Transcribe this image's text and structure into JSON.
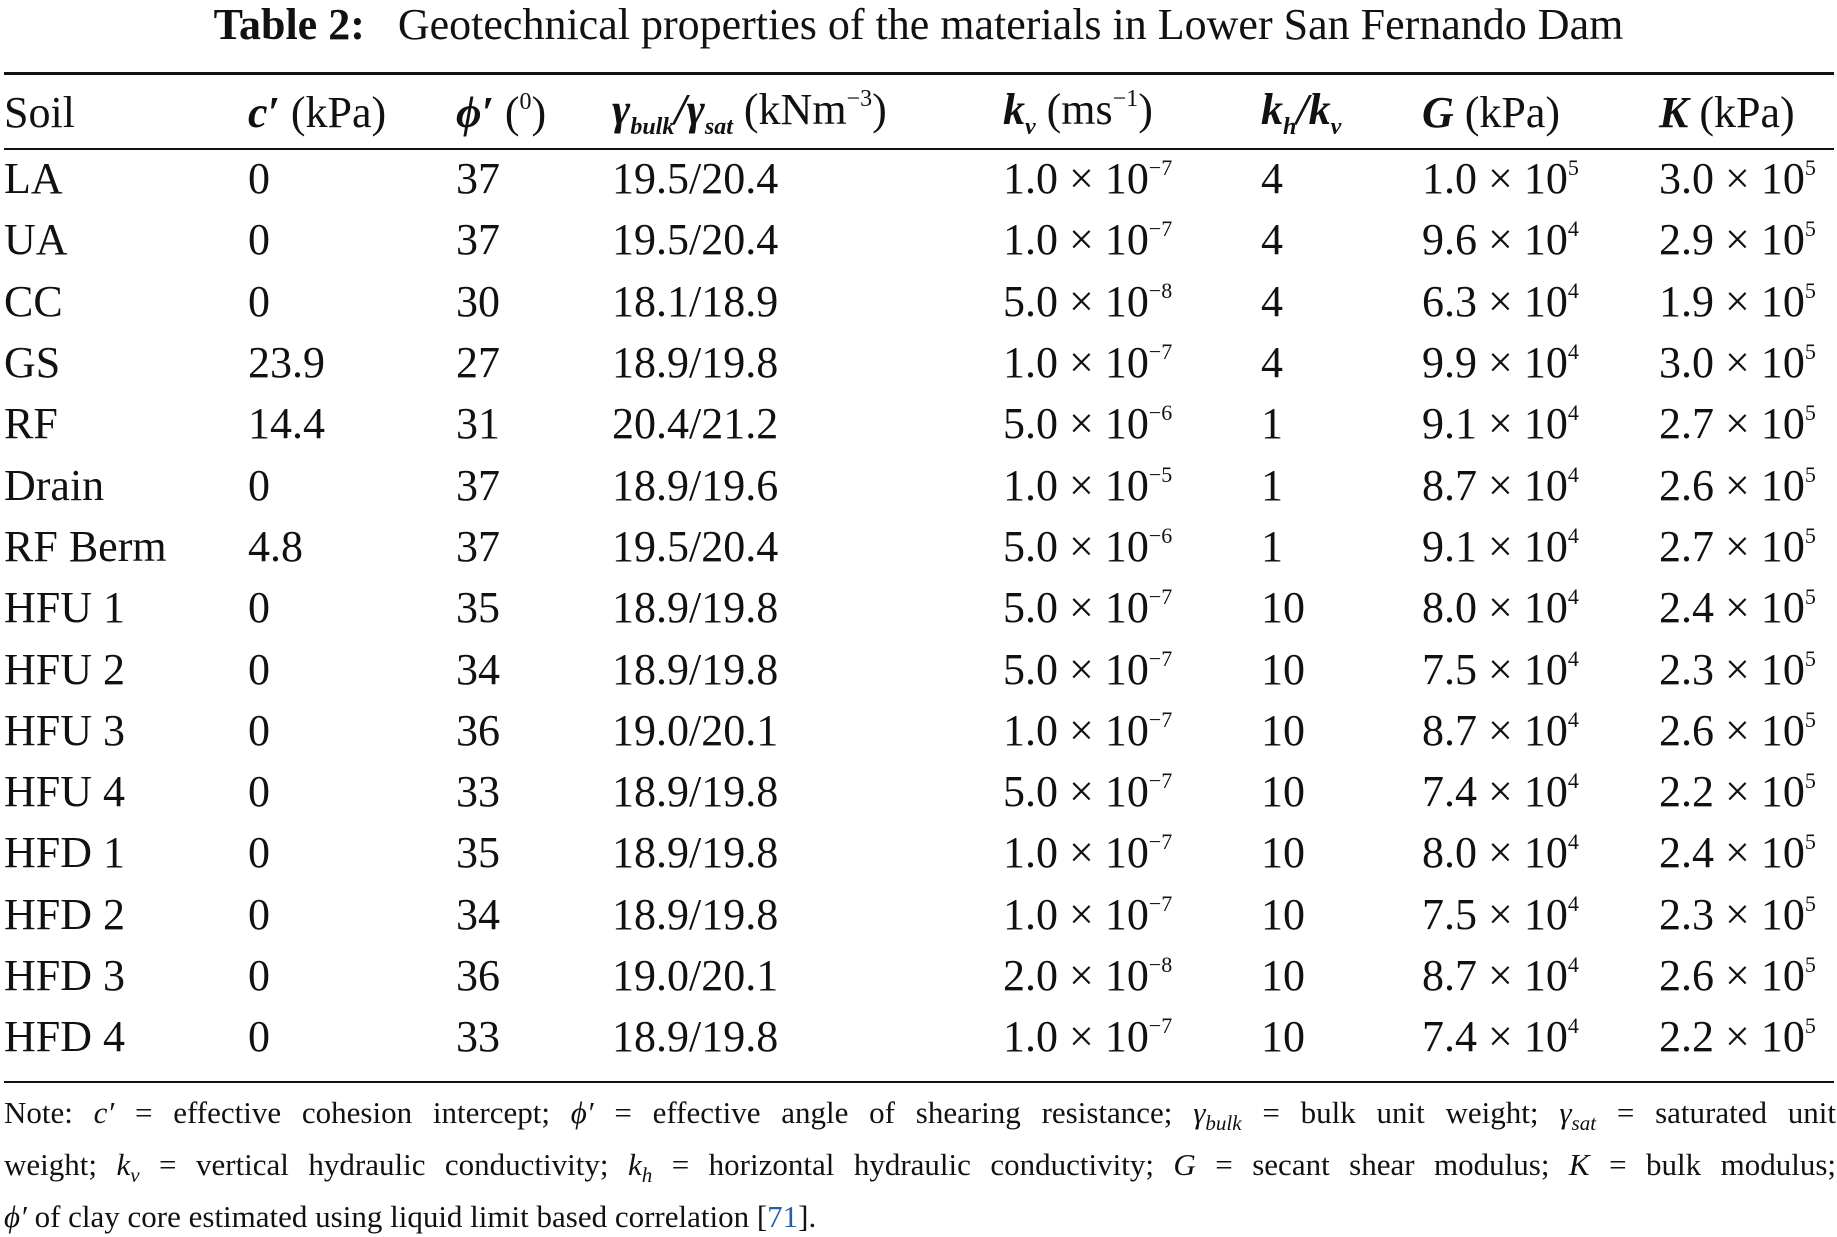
{
  "caption": {
    "label": "Table 2:",
    "text": "Geotechnical properties of the materials in Lower San Fernando Dam"
  },
  "headers": {
    "soil": "Soil",
    "c": {
      "sym": "c′",
      "unit": " (kPa)"
    },
    "phi": {
      "sym": "ϕ′",
      "unit_open": " (",
      "unit_sup": "0",
      "unit_close": ")"
    },
    "gamma": {
      "sym1": "γ",
      "sub1": "bulk",
      "slash": "/",
      "sym2": "γ",
      "sub2": "sat",
      "unit_pre": " (kNm",
      "unit_sup": "−3",
      "unit_close": ")"
    },
    "kv": {
      "sym": "k",
      "sub": "v",
      "unit_pre": " (ms",
      "unit_sup": "−1",
      "unit_close": ")"
    },
    "khkv": {
      "sym1": "k",
      "sub1": "h",
      "slash": "/",
      "sym2": "k",
      "sub2": "v"
    },
    "G": {
      "sym": "G",
      "unit": " (kPa)"
    },
    "K": {
      "sym": "K",
      "unit": " (kPa)"
    }
  },
  "rows": [
    {
      "soil": "LA",
      "c": "0",
      "phi": "37",
      "gamma": "19.5/20.4",
      "kv": {
        "m": "1.0",
        "e": "−7"
      },
      "ratio": "4",
      "G": {
        "m": "1.0",
        "e": "5"
      },
      "K": {
        "m": "3.0",
        "e": "5"
      }
    },
    {
      "soil": "UA",
      "c": "0",
      "phi": "37",
      "gamma": "19.5/20.4",
      "kv": {
        "m": "1.0",
        "e": "−7"
      },
      "ratio": "4",
      "G": {
        "m": "9.6",
        "e": "4"
      },
      "K": {
        "m": "2.9",
        "e": "5"
      }
    },
    {
      "soil": "CC",
      "c": "0",
      "phi": "30",
      "gamma": "18.1/18.9",
      "kv": {
        "m": "5.0",
        "e": "−8"
      },
      "ratio": "4",
      "G": {
        "m": "6.3",
        "e": "4"
      },
      "K": {
        "m": "1.9",
        "e": "5"
      }
    },
    {
      "soil": "GS",
      "c": "23.9",
      "phi": "27",
      "gamma": "18.9/19.8",
      "kv": {
        "m": "1.0",
        "e": "−7"
      },
      "ratio": "4",
      "G": {
        "m": "9.9",
        "e": "4"
      },
      "K": {
        "m": "3.0",
        "e": "5"
      }
    },
    {
      "soil": "RF",
      "c": "14.4",
      "phi": "31",
      "gamma": "20.4/21.2",
      "kv": {
        "m": "5.0",
        "e": "−6"
      },
      "ratio": "1",
      "G": {
        "m": "9.1",
        "e": "4"
      },
      "K": {
        "m": "2.7",
        "e": "5"
      }
    },
    {
      "soil": "Drain",
      "c": "0",
      "phi": "37",
      "gamma": "18.9/19.6",
      "kv": {
        "m": "1.0",
        "e": "−5"
      },
      "ratio": "1",
      "G": {
        "m": "8.7",
        "e": "4"
      },
      "K": {
        "m": "2.6",
        "e": "5"
      }
    },
    {
      "soil": "RF Berm",
      "c": "4.8",
      "phi": "37",
      "gamma": "19.5/20.4",
      "kv": {
        "m": "5.0",
        "e": "−6"
      },
      "ratio": "1",
      "G": {
        "m": "9.1",
        "e": "4"
      },
      "K": {
        "m": "2.7",
        "e": "5"
      }
    },
    {
      "soil": "HFU 1",
      "c": "0",
      "phi": "35",
      "gamma": "18.9/19.8",
      "kv": {
        "m": "5.0",
        "e": "−7"
      },
      "ratio": "10",
      "G": {
        "m": "8.0",
        "e": "4"
      },
      "K": {
        "m": "2.4",
        "e": "5"
      }
    },
    {
      "soil": "HFU 2",
      "c": "0",
      "phi": "34",
      "gamma": "18.9/19.8",
      "kv": {
        "m": "5.0",
        "e": "−7"
      },
      "ratio": "10",
      "G": {
        "m": "7.5",
        "e": "4"
      },
      "K": {
        "m": "2.3",
        "e": "5"
      }
    },
    {
      "soil": "HFU 3",
      "c": "0",
      "phi": "36",
      "gamma": "19.0/20.1",
      "kv": {
        "m": "1.0",
        "e": "−7"
      },
      "ratio": "10",
      "G": {
        "m": "8.7",
        "e": "4"
      },
      "K": {
        "m": "2.6",
        "e": "5"
      }
    },
    {
      "soil": "HFU 4",
      "c": "0",
      "phi": "33",
      "gamma": "18.9/19.8",
      "kv": {
        "m": "5.0",
        "e": "−7"
      },
      "ratio": "10",
      "G": {
        "m": "7.4",
        "e": "4"
      },
      "K": {
        "m": "2.2",
        "e": "5"
      }
    },
    {
      "soil": "HFD 1",
      "c": "0",
      "phi": "35",
      "gamma": "18.9/19.8",
      "kv": {
        "m": "1.0",
        "e": "−7"
      },
      "ratio": "10",
      "G": {
        "m": "8.0",
        "e": "4"
      },
      "K": {
        "m": "2.4",
        "e": "5"
      }
    },
    {
      "soil": "HFD 2",
      "c": "0",
      "phi": "34",
      "gamma": "18.9/19.8",
      "kv": {
        "m": "1.0",
        "e": "−7"
      },
      "ratio": "10",
      "G": {
        "m": "7.5",
        "e": "4"
      },
      "K": {
        "m": "2.3",
        "e": "5"
      }
    },
    {
      "soil": "HFD 3",
      "c": "0",
      "phi": "36",
      "gamma": "19.0/20.1",
      "kv": {
        "m": "2.0",
        "e": "−8"
      },
      "ratio": "10",
      "G": {
        "m": "8.7",
        "e": "4"
      },
      "K": {
        "m": "2.6",
        "e": "5"
      }
    },
    {
      "soil": "HFD 4",
      "c": "0",
      "phi": "33",
      "gamma": "18.9/19.8",
      "kv": {
        "m": "1.0",
        "e": "−7"
      },
      "ratio": "10",
      "G": {
        "m": "7.4",
        "e": "4"
      },
      "K": {
        "m": "2.2",
        "e": "5"
      }
    }
  ],
  "note": {
    "l1_a": "Note: ",
    "l1_c": "c′",
    "l1_b": " = effective cohesion intercept; ",
    "l1_phi": "ϕ′",
    "l1_d": " = effective angle of shearing resistance; ",
    "l1_g1": "γ",
    "l1_g1sub": "bulk",
    "l1_e": " = bulk unit weight; ",
    "l1_g2": "γ",
    "l1_g2sub": "sat",
    "l1_f": " = saturated unit",
    "l2_a": "weight; ",
    "l2_k1": "k",
    "l2_k1sub": "v",
    "l2_b": " = vertical hydraulic conductivity; ",
    "l2_k2": "k",
    "l2_k2sub": "h",
    "l2_c": " = horizontal hydraulic conductivity; ",
    "l2_G": "G",
    "l2_d": " = secant shear modulus; ",
    "l2_K": "K",
    "l2_e": " = bulk modulus;",
    "l3_phi": "ϕ′",
    "l3_a": " of clay core estimated using liquid limit based correlation [",
    "l3_ref": "71",
    "l3_b": "]."
  }
}
